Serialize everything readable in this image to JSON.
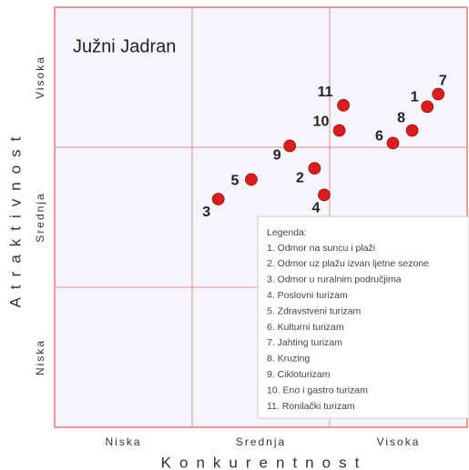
{
  "chart_data": {
    "type": "scatter",
    "annotation": "Južni Jadran",
    "xlabel": "Konkurentnost",
    "ylabel": "Atraktivnost",
    "xlim": [
      0,
      3
    ],
    "ylim": [
      0,
      3
    ],
    "xticks": [
      {
        "value": 0.5,
        "label": "Niska"
      },
      {
        "value": 1.5,
        "label": "Srednja"
      },
      {
        "value": 2.5,
        "label": "Visoka"
      }
    ],
    "yticks": [
      {
        "value": 0.5,
        "label": "Niska"
      },
      {
        "value": 1.5,
        "label": "Srednja"
      },
      {
        "value": 2.5,
        "label": "Visoka"
      }
    ],
    "xgrid": [
      1,
      2
    ],
    "ygrid": [
      1,
      2
    ],
    "color": "#d42020",
    "labels": [
      "1",
      "2",
      "3",
      "4",
      "5",
      "6",
      "7",
      "8",
      "9",
      "10",
      "11"
    ],
    "x": [
      2.71,
      1.89,
      1.19,
      1.96,
      1.43,
      2.46,
      2.79,
      2.6,
      1.71,
      2.07,
      2.1
    ],
    "y": [
      2.29,
      1.85,
      1.63,
      1.66,
      1.77,
      2.03,
      2.38,
      2.12,
      2.01,
      2.12,
      2.3
    ],
    "legend_title": "Legenda:",
    "legend": [
      "1. Odmor na suncu i plaži",
      "2. Odmor uz plažu izvan ljetne sezone",
      "3. Odmor u ruralnim područjima",
      "4. Poslovni turizam",
      "5. Zdravstveni turizam",
      "6. Kulturni turizam",
      "7. Jahting turizam",
      "8. Kruzing",
      "9. Cikloturizam",
      "10. Eno i gastro turizam",
      "11. Ronilački turizam"
    ]
  }
}
